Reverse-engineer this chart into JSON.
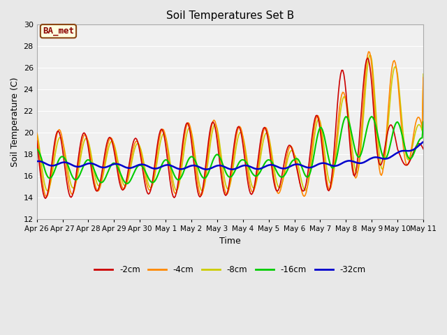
{
  "title": "Soil Temperatures Set B",
  "xlabel": "Time",
  "ylabel": "Soil Temperature (C)",
  "ylim": [
    12,
    30
  ],
  "yticks": [
    12,
    14,
    16,
    18,
    20,
    22,
    24,
    26,
    28,
    30
  ],
  "bg_color": "#e8e8e8",
  "plot_bg": "#f0f0f0",
  "grid_color": "#ffffff",
  "annotation_text": "BA_met",
  "annotation_bg": "#ffffe0",
  "annotation_border": "#8b4513",
  "annotation_text_color": "#8b0000",
  "colors": {
    "-2cm": "#cc0000",
    "-4cm": "#ff8800",
    "-8cm": "#cccc00",
    "-16cm": "#00cc00",
    "-32cm": "#0000cc"
  },
  "x_labels": [
    "Apr 26",
    "Apr 27",
    "Apr 28",
    "Apr 29",
    "Apr 30",
    "May 1",
    "May 2",
    "May 3",
    "May 4",
    "May 5",
    "May 6",
    "May 7",
    "May 8",
    "May 9",
    "May 10",
    "May 11"
  ],
  "num_days": 15
}
